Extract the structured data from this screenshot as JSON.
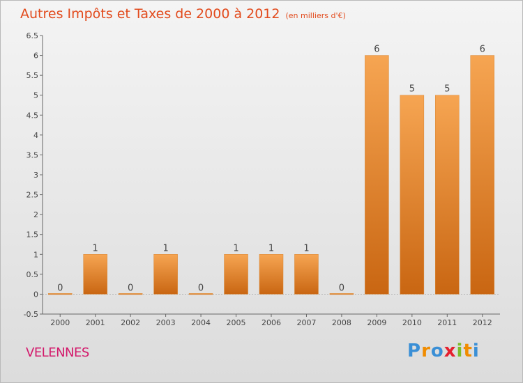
{
  "header": {
    "title": "Autres Impôts et Taxes de 2000 à 2012",
    "subtitle": "(en milliers d'€)"
  },
  "footer": {
    "commune": "VELENNES",
    "brand": "Proxiti"
  },
  "colors": {
    "bar_top": "#f6a552",
    "bar_bottom": "#c96612",
    "title": "#e24a1c",
    "commune": "#d3196b"
  },
  "chart_data": {
    "type": "bar",
    "title": "Autres Impôts et Taxes de 2000 à 2012",
    "subtitle": "(en milliers d'€)",
    "categories": [
      "2000",
      "2001",
      "2002",
      "2003",
      "2004",
      "2005",
      "2006",
      "2007",
      "2008",
      "2009",
      "2010",
      "2011",
      "2012"
    ],
    "values": [
      0,
      1,
      0,
      1,
      0,
      1,
      1,
      1,
      0,
      6,
      5,
      5,
      6
    ],
    "data_labels": [
      "0",
      "1",
      "0",
      "1",
      "0",
      "1",
      "1",
      "1",
      "0",
      "6",
      "5",
      "5",
      "6"
    ],
    "ylim": [
      -0.5,
      6.5
    ],
    "yticks": [
      -0.5,
      0,
      0.5,
      1,
      1.5,
      2,
      2.5,
      3,
      3.5,
      4,
      4.5,
      5,
      5.5,
      6,
      6.5
    ],
    "ytick_labels": [
      "-0.5",
      "0",
      "0.5",
      "1",
      "1.5",
      "2",
      "2.5",
      "3",
      "3.5",
      "4",
      "4.5",
      "5",
      "5.5",
      "6",
      "6.5"
    ],
    "xlabel": "",
    "ylabel": "",
    "grid": false,
    "legend": "none"
  }
}
